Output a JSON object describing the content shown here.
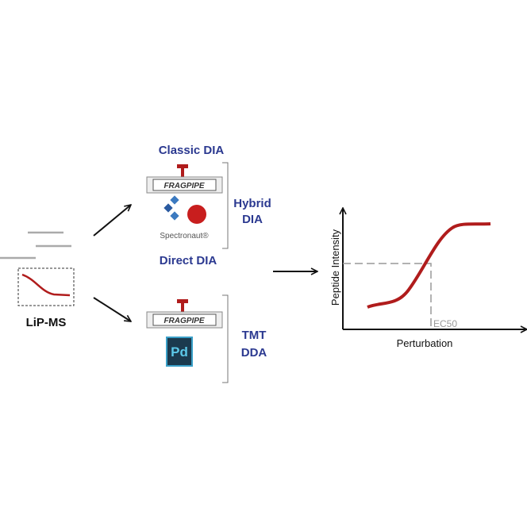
{
  "input": {
    "label": "LiP-MS"
  },
  "methods": {
    "classic": "Classic DIA",
    "direct": "Direct DIA",
    "hybrid": [
      "Hybrid",
      "DIA"
    ],
    "tmt": [
      "TMT",
      "DDA"
    ]
  },
  "logos": {
    "fragpipe": "FRAGPIPE",
    "spectronaut": "Spectronaut®",
    "pd": "Pd"
  },
  "plot": {
    "y_label": "Peptide Intensity",
    "x_label": "Perturbation",
    "marker": "EC50"
  }
}
